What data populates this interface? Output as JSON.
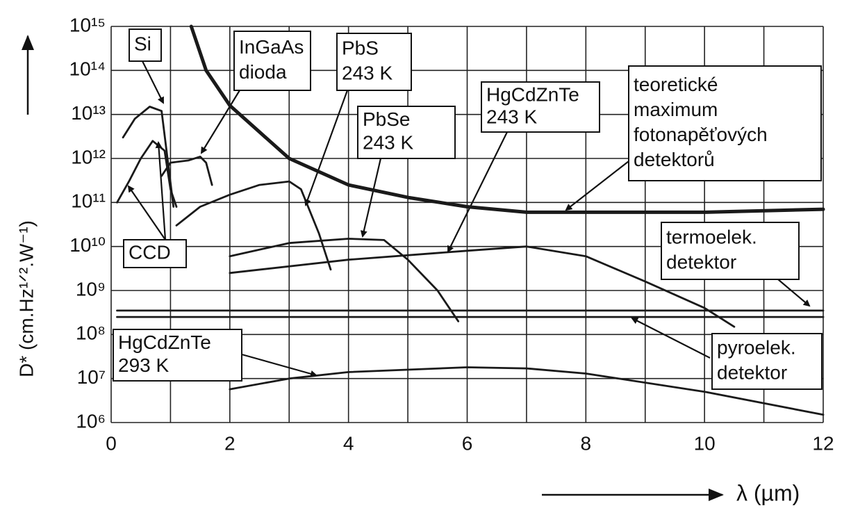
{
  "chart_data": {
    "type": "line",
    "ylabel": "D* (cm.Hz¹ᐟ².W⁻¹)",
    "xlabel": "λ (µm)",
    "xlim": [
      0,
      12
    ],
    "ylim": [
      1000000.0,
      1000000000000000.0
    ],
    "log_y": true,
    "grid": true,
    "xticks": [
      0,
      2,
      4,
      6,
      8,
      10,
      12
    ],
    "xminorticks": [
      1,
      3,
      5,
      7,
      9,
      11
    ],
    "yticks": [
      {
        "value": 1000000.0,
        "label": "10⁶"
      },
      {
        "value": 10000000.0,
        "label": "10⁷"
      },
      {
        "value": 100000000.0,
        "label": "10⁸"
      },
      {
        "value": 1000000000.0,
        "label": "10⁹"
      },
      {
        "value": 10000000000.0,
        "label": "10¹⁰"
      },
      {
        "value": 100000000000.0,
        "label": "10¹¹"
      },
      {
        "value": 1000000000000.0,
        "label": "10¹²"
      },
      {
        "value": 10000000000000.0,
        "label": "10¹³"
      },
      {
        "value": 100000000000000.0,
        "label": "10¹⁴"
      },
      {
        "value": 1000000000000000.0,
        "label": "10¹⁵"
      }
    ],
    "color": "#1a1a1a",
    "series": [
      {
        "label": [
          "Si"
        ],
        "x": [
          0.2,
          0.4,
          0.65,
          0.85,
          0.95,
          1.05
        ],
        "values": [
          3000000000000.0,
          8000000000000.0,
          15000000000000.0,
          12000000000000.0,
          1000000000000.0,
          80000000000.0
        ]
      },
      {
        "label": [
          "CCD"
        ],
        "x": [
          0.1,
          0.3,
          0.5,
          0.7,
          0.9,
          1.0,
          1.1
        ],
        "values": [
          100000000000.0,
          300000000000.0,
          1000000000000.0,
          2500000000000.0,
          1500000000000.0,
          200000000000.0,
          80000000000.0
        ]
      },
      {
        "label": [
          "InGaAs",
          "dioda"
        ],
        "x": [
          0.85,
          1.0,
          1.3,
          1.5,
          1.6,
          1.7
        ],
        "values": [
          400000000000.0,
          800000000000.0,
          900000000000.0,
          1100000000000.0,
          800000000000.0,
          250000000000.0
        ]
      },
      {
        "label": [
          "PbS",
          "243 K"
        ],
        "x": [
          1.1,
          1.5,
          2,
          2.5,
          3,
          3.2,
          3.5,
          3.7
        ],
        "values": [
          30000000000.0,
          80000000000.0,
          150000000000.0,
          250000000000.0,
          300000000000.0,
          200000000000.0,
          20000000000.0,
          3000000000.0
        ]
      },
      {
        "label": [
          "PbSe",
          "243 K"
        ],
        "x": [
          2,
          3,
          4,
          4.6,
          5,
          5.5,
          5.85
        ],
        "values": [
          6000000000.0,
          12000000000.0,
          15000000000.0,
          14000000000.0,
          5000000000.0,
          1000000000.0,
          200000000.0
        ]
      },
      {
        "label": [
          "HgCdZnTe",
          "243 K"
        ],
        "x": [
          2,
          4,
          6,
          7,
          8,
          9,
          10,
          10.5
        ],
        "values": [
          2500000000.0,
          5000000000.0,
          8000000000.0,
          10000000000.0,
          6000000000.0,
          1600000000.0,
          400000000.0,
          150000000.0
        ]
      },
      {
        "label": [
          "teoretické",
          "maximum",
          "fotonapěťových",
          "detektorů"
        ],
        "thick": true,
        "x": [
          1.35,
          1.6,
          2,
          2.5,
          3,
          4,
          5,
          6,
          7,
          8,
          10,
          12
        ],
        "values": [
          1000000000000000.0,
          100000000000000.0,
          16000000000000.0,
          4000000000000.0,
          1000000000000.0,
          250000000000.0,
          130000000000.0,
          80000000000.0,
          60000000000.0,
          60000000000.0,
          60000000000.0,
          70000000000.0
        ]
      },
      {
        "label": [
          "termoelek.",
          "detektor"
        ],
        "x": [
          0.1,
          12
        ],
        "values": [
          350000000.0,
          350000000.0
        ]
      },
      {
        "label": [
          "pyroelek.",
          "detektor"
        ],
        "x": [
          0.1,
          12
        ],
        "values": [
          250000000.0,
          250000000.0
        ]
      },
      {
        "label": [
          "HgCdZnTe",
          "293 K"
        ],
        "x": [
          2,
          3,
          4,
          6,
          7,
          8,
          10,
          12
        ],
        "values": [
          5700000.0,
          10000000.0,
          14000000.0,
          18000000.0,
          17000000.0,
          13000000.0,
          5000000.0,
          1500000.0
        ]
      }
    ]
  }
}
